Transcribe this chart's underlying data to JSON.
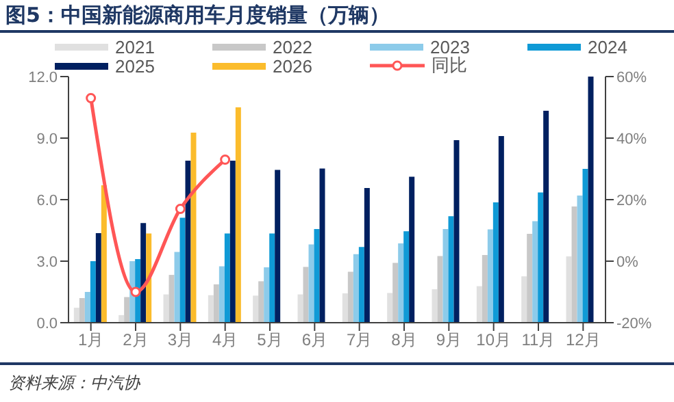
{
  "chart_data": {
    "type": "bar",
    "title": "图5：中国新能源商用车月度销量（万辆）",
    "categories": [
      "1月",
      "2月",
      "3月",
      "4月",
      "5月",
      "6月",
      "7月",
      "8月",
      "9月",
      "10月",
      "11月",
      "12月"
    ],
    "series": [
      {
        "name": "2021",
        "color": "#e0e0e0",
        "values": [
          0.73,
          0.37,
          1.38,
          1.34,
          1.32,
          1.38,
          1.43,
          1.45,
          1.63,
          1.78,
          2.26,
          3.23
        ]
      },
      {
        "name": "2022",
        "color": "#c8c8c8",
        "values": [
          1.2,
          1.25,
          2.33,
          1.87,
          2.02,
          2.72,
          2.48,
          2.92,
          3.25,
          3.3,
          4.33,
          5.67
        ]
      },
      {
        "name": "2023",
        "color": "#8ccbea",
        "values": [
          1.5,
          3.0,
          3.45,
          2.75,
          2.7,
          3.82,
          3.34,
          3.87,
          4.57,
          4.55,
          4.95,
          6.2
        ]
      },
      {
        "name": "2024",
        "color": "#0f9ad6",
        "values": [
          3.0,
          3.1,
          5.12,
          4.35,
          4.35,
          4.57,
          3.69,
          4.46,
          5.19,
          5.87,
          6.35,
          7.5
        ]
      },
      {
        "name": "2025",
        "color": "#002060",
        "values": [
          4.37,
          4.86,
          7.9,
          7.9,
          7.45,
          7.52,
          6.57,
          7.12,
          8.9,
          9.1,
          10.33,
          12.0
        ]
      },
      {
        "name": "2026",
        "color": "#fbbc2c",
        "values": [
          6.7,
          4.35,
          9.27,
          10.5,
          null,
          null,
          null,
          null,
          null,
          null,
          null,
          null
        ]
      },
      {
        "name": "同比",
        "type": "line",
        "axis": "y2",
        "color": "#ff5656",
        "marker": "circle",
        "values": [
          53,
          -10,
          17,
          33,
          null,
          null,
          null,
          null,
          null,
          null,
          null,
          null
        ]
      }
    ],
    "ylim": [
      0,
      12
    ],
    "yticks": [
      {
        "value": 0,
        "label": "0.0"
      },
      {
        "value": 3,
        "label": "3.0"
      },
      {
        "value": 6,
        "label": "6.0"
      },
      {
        "value": 9,
        "label": "9.0"
      },
      {
        "value": 12,
        "label": "12.0"
      }
    ],
    "y2lim": [
      -20,
      60
    ],
    "y2ticks": [
      {
        "value": -20,
        "label": "-20%"
      },
      {
        "value": 0,
        "label": "0%"
      },
      {
        "value": 20,
        "label": "20%"
      },
      {
        "value": 40,
        "label": "40%"
      },
      {
        "value": 60,
        "label": "60%"
      }
    ],
    "legend": "top",
    "grid": false,
    "annotations": [
      "资料来源：中汽协"
    ]
  }
}
